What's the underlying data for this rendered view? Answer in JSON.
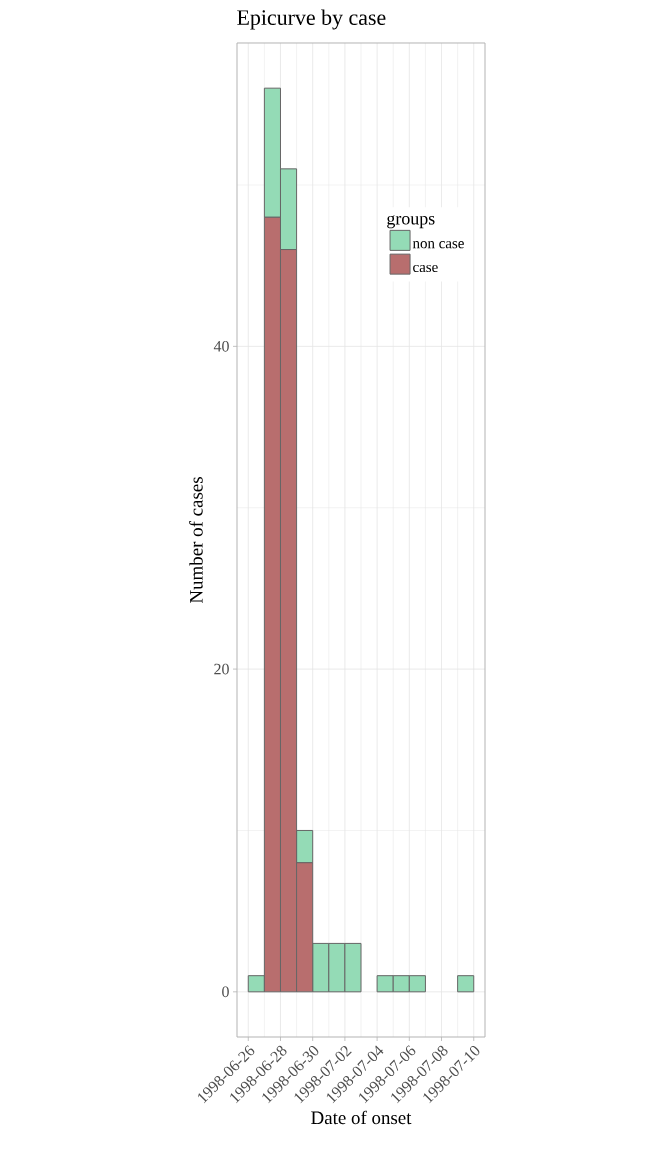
{
  "chart_data": {
    "type": "bar",
    "title": "Epicurve by case",
    "xlabel": "Date of onset",
    "ylabel": "Number of cases",
    "legend_title": "groups",
    "x": [
      "1998-06-26T12:00",
      "1998-06-27T12:00",
      "1998-06-28T12:00",
      "1998-06-29T12:00",
      "1998-06-30T12:00",
      "1998-07-01T12:00",
      "1998-07-02T12:00",
      "1998-07-03T12:00",
      "1998-07-04T12:00",
      "1998-07-05T12:00",
      "1998-07-06T12:00",
      "1998-07-07T12:00",
      "1998-07-08T12:00",
      "1998-07-09T12:00"
    ],
    "series": [
      {
        "name": "case",
        "color": "#b86e6e",
        "values": [
          0,
          48,
          46,
          8,
          0,
          0,
          0,
          0,
          0,
          0,
          0,
          0,
          0,
          0
        ]
      },
      {
        "name": "non case",
        "color": "#94dbb6",
        "values": [
          1,
          8,
          5,
          2,
          3,
          3,
          3,
          0,
          1,
          1,
          1,
          0,
          0,
          1
        ]
      }
    ],
    "stacked": true,
    "xlim": [
      "1998-06-25T07:12",
      "1998-07-10T16:48"
    ],
    "ylim": [
      -2.8,
      58.8
    ],
    "xticks": [
      "1998-06-26",
      {
        "value": "1998-06-27",
        "label": null
      },
      "1998-06-28",
      {
        "value": "1998-06-29",
        "label": null
      },
      "1998-06-30",
      {
        "value": "1998-07-01",
        "label": null
      },
      "1998-07-02",
      {
        "value": "1998-07-03",
        "label": null
      },
      "1998-07-04",
      {
        "value": "1998-07-05",
        "label": null
      },
      "1998-07-06",
      {
        "value": "1998-07-07",
        "label": null
      },
      "1998-07-08",
      {
        "value": "1998-07-09",
        "label": null
      },
      "1998-07-10"
    ],
    "yticks": [
      0,
      {
        "value": 10,
        "label": null
      },
      20,
      {
        "value": 30,
        "label": null
      },
      40,
      {
        "value": 50,
        "label": null
      }
    ],
    "grid": true,
    "legend": "top right"
  }
}
